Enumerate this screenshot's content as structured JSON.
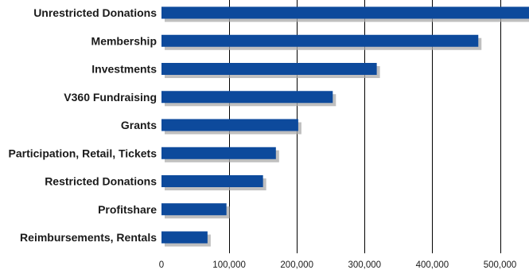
{
  "chart_data": {
    "type": "bar",
    "orientation": "horizontal",
    "categories": [
      "Unrestricted Donations",
      "Membership",
      "Investments",
      "V360 Fundraising",
      "Grants",
      "Participation, Retail, Tickets",
      "Restricted Donations",
      "Profitshare",
      "Reimbursements, Rentals"
    ],
    "values": [
      555000,
      468000,
      318000,
      253000,
      202000,
      169000,
      150000,
      96000,
      68000
    ],
    "xlim": [
      0,
      550000
    ],
    "x_ticks": [
      0,
      100000,
      200000,
      300000,
      400000,
      500000
    ],
    "x_tick_labels": [
      "0",
      "100,000",
      "200,000",
      "300,000",
      "400,000",
      "500,000"
    ],
    "grid": "vertical lines",
    "bar_color": "#0d4a9c",
    "shadow_color": "#a9a9a9",
    "title": "",
    "xlabel": "",
    "ylabel": ""
  }
}
